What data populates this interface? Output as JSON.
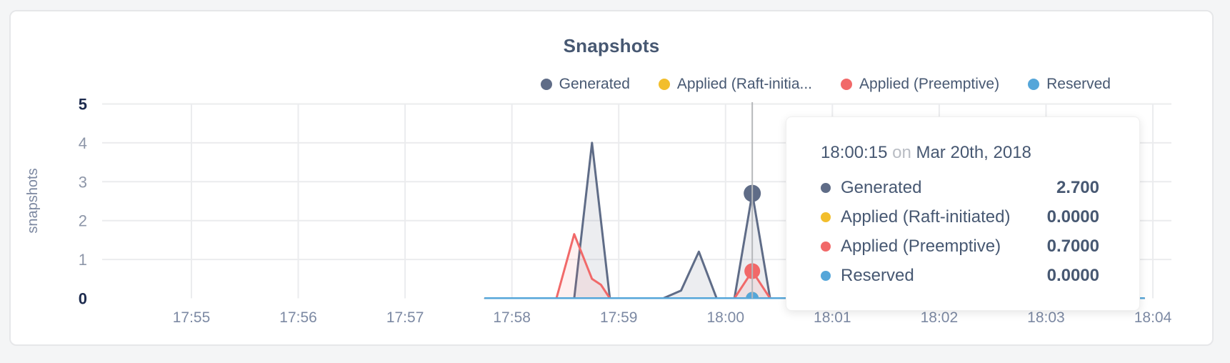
{
  "page": {
    "background_color": "#f4f5f6"
  },
  "chart": {
    "title": "Snapshots",
    "legend": [
      {
        "label": "Generated",
        "color": "#5F6C87"
      },
      {
        "label": "Applied (Raft-initia...",
        "color": "#F2BE2C"
      },
      {
        "label": "Applied (Preemptive)",
        "color": "#F16969"
      },
      {
        "label": "Reserved",
        "color": "#55A6D9"
      }
    ]
  },
  "chart_data": {
    "type": "area",
    "title": "Snapshots",
    "xlabel": "",
    "ylabel": "snapshots",
    "ylim": [
      0,
      5
    ],
    "y_ticks": [
      "0",
      "1",
      "2",
      "3",
      "4",
      "5"
    ],
    "y_ticks_emphasized": [
      "0",
      "5"
    ],
    "x_ticks": [
      "17:55",
      "17:56",
      "17:57",
      "17:58",
      "17:59",
      "18:00",
      "18:01",
      "18:02",
      "18:03",
      "18:04"
    ],
    "grid": true,
    "legend_position": "top-right",
    "series": [
      {
        "name": "Generated",
        "color": "#5F6C87",
        "fill_opacity": 0.12,
        "points": [
          [
            "17:57:45",
            0
          ],
          [
            "17:58:35",
            0
          ],
          [
            "17:58:45",
            4
          ],
          [
            "17:58:55",
            0
          ],
          [
            "17:59:25",
            0
          ],
          [
            "17:59:35",
            0.2
          ],
          [
            "17:59:45",
            1.2
          ],
          [
            "17:59:55",
            0
          ],
          [
            "18:00:05",
            0
          ],
          [
            "18:00:15",
            2.7
          ],
          [
            "18:00:25",
            0
          ],
          [
            "18:03:55",
            0
          ]
        ]
      },
      {
        "name": "Applied (Raft-initiated)",
        "color": "#F2BE2C",
        "fill_opacity": 0,
        "points": [
          [
            "17:57:45",
            0
          ],
          [
            "18:03:55",
            0
          ]
        ]
      },
      {
        "name": "Applied (Preemptive)",
        "color": "#F16969",
        "fill_opacity": 0.1,
        "points": [
          [
            "17:57:45",
            0
          ],
          [
            "17:58:25",
            0
          ],
          [
            "17:58:35",
            1.65
          ],
          [
            "17:58:45",
            0.5
          ],
          [
            "17:58:50",
            0.35
          ],
          [
            "17:58:55",
            0
          ],
          [
            "18:00:05",
            0
          ],
          [
            "18:00:15",
            0.7
          ],
          [
            "18:00:25",
            0
          ],
          [
            "18:03:55",
            0
          ]
        ]
      },
      {
        "name": "Reserved",
        "color": "#55A6D9",
        "fill_opacity": 0,
        "points": [
          [
            "17:57:45",
            0
          ],
          [
            "18:03:55",
            0
          ]
        ]
      }
    ],
    "hover": {
      "time": "18:00:15",
      "markers": [
        {
          "series": "Generated",
          "value": 2.7,
          "color": "#5F6C87"
        },
        {
          "series": "Applied (Raft-initiated)",
          "value": 0,
          "color": "#F2BE2C"
        },
        {
          "series": "Applied (Preemptive)",
          "value": 0.7,
          "color": "#F16969"
        },
        {
          "series": "Reserved",
          "value": 0,
          "color": "#55A6D9"
        }
      ]
    }
  },
  "tooltip": {
    "time": "18:00:15",
    "connector": "on",
    "date": "Mar 20th, 2018",
    "rows": [
      {
        "label": "Generated",
        "value": "2.700",
        "color": "#5F6C87"
      },
      {
        "label": "Applied (Raft-initiated)",
        "value": "0.0000",
        "color": "#F2BE2C"
      },
      {
        "label": "Applied (Preemptive)",
        "value": "0.7000",
        "color": "#F16969"
      },
      {
        "label": "Reserved",
        "value": "0.0000",
        "color": "#55A6D9"
      }
    ]
  }
}
